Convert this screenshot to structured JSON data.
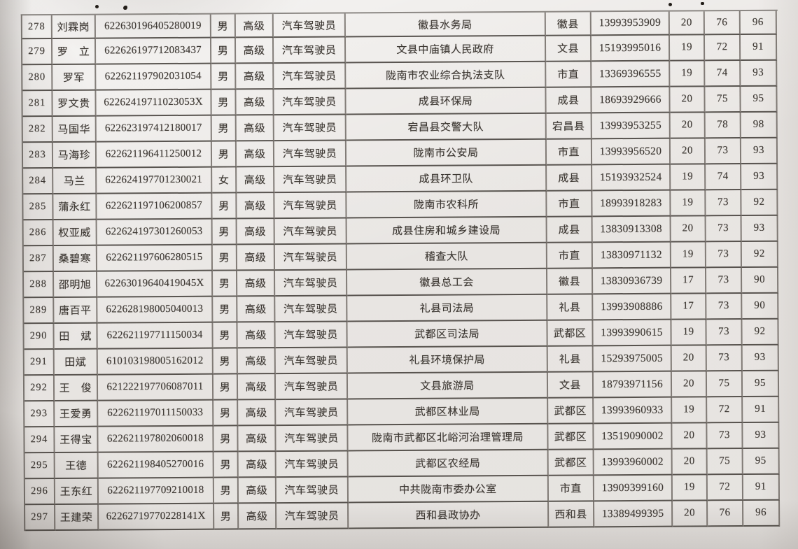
{
  "document": {
    "kind": "scanned-record-table-photo",
    "visible_header": "",
    "occupation_value": "汽车驾驶员",
    "level_value": "高级"
  },
  "colors": {
    "paper": "#eae7e4",
    "grid_line": "#3d3833",
    "text": "#3d3833"
  },
  "table": {
    "field_names": [
      "index",
      "name",
      "id_number",
      "gender",
      "level",
      "occupation",
      "work_unit",
      "district",
      "phone",
      "score_1",
      "score_2",
      "score_3"
    ],
    "rows": [
      [
        "278",
        "刘霖岗",
        "622630196405280019",
        "男",
        "高级",
        "汽车驾驶员",
        "徽县水务局",
        "徽县",
        "13993953909",
        "20",
        "76",
        "96"
      ],
      [
        "279",
        "罗　立",
        "622626197712083437",
        "男",
        "高级",
        "汽车驾驶员",
        "文县中庙镇人民政府",
        "文县",
        "15193995016",
        "19",
        "72",
        "91"
      ],
      [
        "280",
        "罗军",
        "622621197902031054",
        "男",
        "高级",
        "汽车驾驶员",
        "陇南市农业综合执法支队",
        "市直",
        "13369396555",
        "19",
        "74",
        "93"
      ],
      [
        "281",
        "罗文贵",
        "62262419711023053X",
        "男",
        "高级",
        "汽车驾驶员",
        "成县环保局",
        "成县",
        "18693929666",
        "20",
        "75",
        "95"
      ],
      [
        "282",
        "马国华",
        "622623197412180017",
        "男",
        "高级",
        "汽车驾驶员",
        "宕昌县交警大队",
        "宕昌县",
        "13993953255",
        "20",
        "78",
        "98"
      ],
      [
        "283",
        "马海珍",
        "622621196411250012",
        "男",
        "高级",
        "汽车驾驶员",
        "陇南市公安局",
        "市直",
        "13993956520",
        "20",
        "73",
        "93"
      ],
      [
        "284",
        "马兰",
        "622624197701230021",
        "女",
        "高级",
        "汽车驾驶员",
        "成县环卫队",
        "成县",
        "15193932524",
        "19",
        "74",
        "93"
      ],
      [
        "285",
        "蒲永红",
        "622621197106200857",
        "男",
        "高级",
        "汽车驾驶员",
        "陇南市农科所",
        "市直",
        "18993918283",
        "19",
        "73",
        "92"
      ],
      [
        "286",
        "权亚威",
        "622624197301260053",
        "男",
        "高级",
        "汽车驾驶员",
        "成县住房和城乡建设局",
        "成县",
        "13830913308",
        "20",
        "73",
        "93"
      ],
      [
        "287",
        "桑碧寒",
        "622621197606280515",
        "男",
        "高级",
        "汽车驾驶员",
        "稽查大队",
        "市直",
        "13830971132",
        "19",
        "73",
        "92"
      ],
      [
        "288",
        "邵明旭",
        "62263019640419045X",
        "男",
        "高级",
        "汽车驾驶员",
        "徽县总工会",
        "徽县",
        "13830936739",
        "17",
        "73",
        "90"
      ],
      [
        "289",
        "唐百平",
        "622628198005040013",
        "男",
        "高级",
        "汽车驾驶员",
        "礼县司法局",
        "礼县",
        "13993908886",
        "17",
        "73",
        "90"
      ],
      [
        "290",
        "田　斌",
        "622621197711150034",
        "男",
        "高级",
        "汽车驾驶员",
        "武都区司法局",
        "武都区",
        "13993990615",
        "19",
        "73",
        "92"
      ],
      [
        "291",
        "田斌",
        "610103198005162012",
        "男",
        "高级",
        "汽车驾驶员",
        "礼县环境保护局",
        "礼县",
        "15293975005",
        "20",
        "73",
        "93"
      ],
      [
        "292",
        "王　俊",
        "621222197706087011",
        "男",
        "高级",
        "汽车驾驶员",
        "文县旅游局",
        "文县",
        "18793971156",
        "20",
        "75",
        "95"
      ],
      [
        "293",
        "王爱勇",
        "622621197011150033",
        "男",
        "高级",
        "汽车驾驶员",
        "武都区林业局",
        "武都区",
        "13993960933",
        "19",
        "72",
        "91"
      ],
      [
        "294",
        "王得宝",
        "622621197802060018",
        "男",
        "高级",
        "汽车驾驶员",
        "陇南市武都区北峪河治理管理局",
        "武都区",
        "13519090002",
        "20",
        "73",
        "93"
      ],
      [
        "295",
        "王德",
        "622621198405270016",
        "男",
        "高级",
        "汽车驾驶员",
        "武都区农经局",
        "武都区",
        "13993960002",
        "20",
        "75",
        "95"
      ],
      [
        "296",
        "王东红",
        "622621197709210018",
        "男",
        "高级",
        "汽车驾驶员",
        "中共陇南市委办公室",
        "市直",
        "13909399160",
        "19",
        "72",
        "91"
      ],
      [
        "297",
        "王建荣",
        "62262719770228141X",
        "男",
        "高级",
        "汽车驾驶员",
        "西和县政协办",
        "西和县",
        "13389499395",
        "20",
        "76",
        "96"
      ]
    ]
  }
}
